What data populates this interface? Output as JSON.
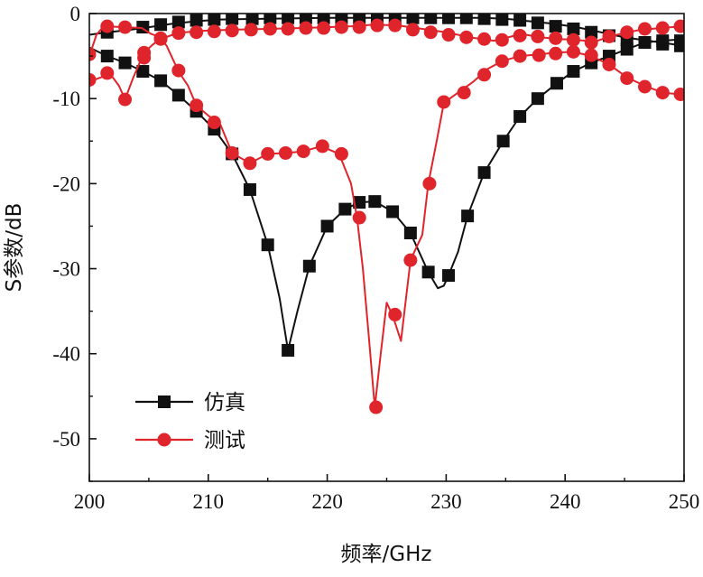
{
  "chart_data": {
    "type": "line",
    "xlabel": "频率/GHz",
    "ylabel": "S参数/dB",
    "xlim": [
      200,
      250
    ],
    "ylim": [
      -55,
      0
    ],
    "xticks": [
      "200",
      "210",
      "220",
      "230",
      "240",
      "250"
    ],
    "yticks": [
      "0",
      "-10",
      "-20",
      "-30",
      "-40",
      "-50"
    ],
    "grid": false,
    "legend_position": "bottom-left",
    "legend": [
      {
        "label": "仿真",
        "color": "#111111",
        "marker": "square"
      },
      {
        "label": "测试",
        "color": "#e0242b",
        "marker": "circle"
      }
    ],
    "series": [
      {
        "name": "仿真",
        "group": "仿真",
        "color": "#111111",
        "marker": "square",
        "curve": [
          [
            200,
            -2.5
          ],
          [
            201.5,
            -2.2
          ],
          [
            203,
            -2
          ],
          [
            205,
            -1.6
          ],
          [
            207,
            -1.2
          ],
          [
            209,
            -0.9
          ],
          [
            211,
            -0.7
          ],
          [
            215,
            -0.6
          ],
          [
            220,
            -0.5
          ],
          [
            225,
            -0.5
          ],
          [
            230,
            -0.5
          ],
          [
            233,
            -0.5
          ],
          [
            235,
            -0.6
          ],
          [
            237,
            -0.9
          ],
          [
            239,
            -1.2
          ],
          [
            241,
            -1.6
          ],
          [
            243,
            -2.2
          ],
          [
            245,
            -2.8
          ],
          [
            247,
            -3.2
          ],
          [
            249,
            -3.6
          ],
          [
            250,
            -3.8
          ]
        ],
        "markers": [
          [
            201.5,
            -2.2
          ],
          [
            204.5,
            -1.6
          ],
          [
            206,
            -1.3
          ],
          [
            207.5,
            -1
          ],
          [
            209,
            -0.8
          ],
          [
            210.5,
            -0.7
          ],
          [
            212,
            -0.6
          ],
          [
            213.7,
            -0.6
          ],
          [
            215.2,
            -0.5
          ],
          [
            216.7,
            -0.5
          ],
          [
            218.2,
            -0.5
          ],
          [
            219.7,
            -0.5
          ],
          [
            221.2,
            -0.5
          ],
          [
            222.7,
            -0.5
          ],
          [
            224.2,
            -0.5
          ],
          [
            225.7,
            -0.5
          ],
          [
            227.2,
            -0.5
          ],
          [
            228.7,
            -0.5
          ],
          [
            230.2,
            -0.5
          ],
          [
            231.7,
            -0.5
          ],
          [
            233.2,
            -0.6
          ],
          [
            234.7,
            -0.7
          ],
          [
            236.2,
            -0.8
          ],
          [
            237.7,
            -1.1
          ],
          [
            239.2,
            -1.5
          ],
          [
            240.7,
            -1.8
          ],
          [
            242.2,
            -2.2
          ],
          [
            243.7,
            -2.6
          ],
          [
            245.2,
            -3.1
          ],
          [
            246.7,
            -3.4
          ],
          [
            248.2,
            -3.6
          ],
          [
            249.7,
            -3.8
          ]
        ]
      },
      {
        "name": "仿真",
        "group": "仿真",
        "color": "#111111",
        "marker": "square",
        "curve": [
          [
            200,
            -4
          ],
          [
            201.5,
            -5
          ],
          [
            203,
            -5.8
          ],
          [
            204.5,
            -6.8
          ],
          [
            206,
            -7.9
          ],
          [
            207.5,
            -9.6
          ],
          [
            209,
            -11.5
          ],
          [
            210.5,
            -13.6
          ],
          [
            212,
            -16.5
          ],
          [
            213.5,
            -20.7
          ],
          [
            215,
            -27.2
          ],
          [
            216,
            -33.5
          ],
          [
            216.7,
            -39.6
          ],
          [
            217.5,
            -35
          ],
          [
            218.5,
            -29.7
          ],
          [
            220,
            -25
          ],
          [
            221.5,
            -23
          ],
          [
            222.7,
            -22.2
          ],
          [
            224,
            -22.1
          ],
          [
            225.5,
            -23.3
          ],
          [
            227,
            -25.8
          ],
          [
            228.5,
            -30.4
          ],
          [
            229.3,
            -32.3
          ],
          [
            229.8,
            -32
          ],
          [
            230.2,
            -30.8
          ],
          [
            231,
            -28
          ],
          [
            231.8,
            -23.8
          ],
          [
            233.2,
            -18.7
          ],
          [
            234.8,
            -15
          ],
          [
            236.2,
            -12.1
          ],
          [
            237.7,
            -10
          ],
          [
            239.3,
            -8.2
          ],
          [
            240.7,
            -6.8
          ],
          [
            242.2,
            -5.8
          ],
          [
            243.7,
            -5
          ],
          [
            245.2,
            -4.2
          ],
          [
            246.7,
            -3.4
          ],
          [
            248.2,
            -3.2
          ],
          [
            250,
            -3
          ]
        ],
        "markers": [
          [
            201.5,
            -5
          ],
          [
            203,
            -5.8
          ],
          [
            204.5,
            -6.8
          ],
          [
            206,
            -7.9
          ],
          [
            207.5,
            -9.6
          ],
          [
            209,
            -11.5
          ],
          [
            210.5,
            -13.6
          ],
          [
            212,
            -16.5
          ],
          [
            213.5,
            -20.7
          ],
          [
            215,
            -27.2
          ],
          [
            216.7,
            -39.6
          ],
          [
            218.5,
            -29.7
          ],
          [
            220,
            -25
          ],
          [
            221.5,
            -23
          ],
          [
            222.7,
            -22.2
          ],
          [
            224,
            -22.1
          ],
          [
            225.5,
            -23.3
          ],
          [
            227,
            -25.8
          ],
          [
            228.5,
            -30.4
          ],
          [
            230.2,
            -30.8
          ],
          [
            231.8,
            -23.8
          ],
          [
            233.2,
            -18.7
          ],
          [
            234.8,
            -15
          ],
          [
            236.2,
            -12.1
          ],
          [
            237.7,
            -10
          ],
          [
            239.3,
            -8.2
          ],
          [
            240.7,
            -6.8
          ],
          [
            242.2,
            -5.8
          ],
          [
            243.7,
            -5
          ],
          [
            245.2,
            -4.2
          ],
          [
            246.7,
            -3.4
          ],
          [
            248.2,
            -3.2
          ],
          [
            249.7,
            -3.2
          ]
        ]
      },
      {
        "name": "测试",
        "group": "测试",
        "color": "#e0242b",
        "marker": "circle",
        "curve": [
          [
            200,
            -5
          ],
          [
            200.6,
            -2.5
          ],
          [
            201.2,
            -1.5
          ],
          [
            203,
            -1.6
          ],
          [
            204.4,
            -1.7
          ],
          [
            205.2,
            -2.4
          ],
          [
            206.2,
            -2.9
          ],
          [
            207,
            -2.5
          ],
          [
            208,
            -2.2
          ],
          [
            210,
            -2
          ],
          [
            212,
            -1.9
          ],
          [
            215,
            -1.8
          ],
          [
            218,
            -1.7
          ],
          [
            220,
            -1.6
          ],
          [
            222,
            -1.5
          ],
          [
            224,
            -1.3
          ],
          [
            226,
            -1.4
          ],
          [
            228,
            -1.8
          ],
          [
            230,
            -2.2
          ],
          [
            232,
            -2.8
          ],
          [
            234,
            -3.2
          ],
          [
            235.2,
            -2.8
          ],
          [
            236.3,
            -2.4
          ],
          [
            238,
            -2.8
          ],
          [
            239.5,
            -3
          ],
          [
            241,
            -3.1
          ],
          [
            242.5,
            -3.3
          ],
          [
            244,
            -2.6
          ],
          [
            246,
            -2
          ],
          [
            248,
            -1.7
          ],
          [
            250,
            -1.5
          ]
        ],
        "markers": [
          [
            200,
            -4.8
          ],
          [
            201.5,
            -1.5
          ],
          [
            203,
            -1.6
          ],
          [
            204.6,
            -5.2
          ],
          [
            206,
            -3
          ],
          [
            207.5,
            -2.3
          ],
          [
            209,
            -2.2
          ],
          [
            210.5,
            -2.1
          ],
          [
            212,
            -2
          ],
          [
            213.6,
            -1.9
          ],
          [
            215.2,
            -1.8
          ],
          [
            216.7,
            -1.8
          ],
          [
            218.2,
            -1.7
          ],
          [
            219.7,
            -1.7
          ],
          [
            221.2,
            -1.6
          ],
          [
            222.7,
            -1.6
          ],
          [
            224.2,
            -1.4
          ],
          [
            225.7,
            -1.4
          ],
          [
            227.2,
            -1.9
          ],
          [
            228.7,
            -2.2
          ],
          [
            230.2,
            -2.5
          ],
          [
            231.7,
            -2.8
          ],
          [
            233.2,
            -3
          ],
          [
            234.7,
            -3.1
          ],
          [
            236.2,
            -2.6
          ],
          [
            237.7,
            -2.7
          ],
          [
            239.2,
            -2.9
          ],
          [
            240.7,
            -3.1
          ],
          [
            242.2,
            -3.4
          ],
          [
            243.7,
            -2.7
          ],
          [
            245.2,
            -2.2
          ],
          [
            246.7,
            -1.8
          ],
          [
            248.2,
            -1.7
          ],
          [
            249.7,
            -1.5
          ]
        ]
      },
      {
        "name": "测试",
        "group": "测试",
        "color": "#e0242b",
        "marker": "circle",
        "curve": [
          [
            200,
            -8
          ],
          [
            201,
            -7.5
          ],
          [
            201.7,
            -7
          ],
          [
            202.5,
            -8.5
          ],
          [
            203,
            -10.1
          ],
          [
            203.7,
            -7.5
          ],
          [
            204.6,
            -4.6
          ],
          [
            205.3,
            -3.7
          ],
          [
            206,
            -2.9
          ],
          [
            206.5,
            -3.8
          ],
          [
            207.5,
            -6.8
          ],
          [
            208.3,
            -8.5
          ],
          [
            209,
            -10.8
          ],
          [
            210,
            -12
          ],
          [
            211,
            -13
          ],
          [
            212,
            -16.4
          ],
          [
            213.5,
            -17.6
          ],
          [
            215,
            -16.5
          ],
          [
            216.5,
            -16.4
          ],
          [
            218,
            -16.2
          ],
          [
            219.5,
            -15.6
          ],
          [
            221,
            -16.5
          ],
          [
            222,
            -20
          ],
          [
            222.5,
            -24
          ],
          [
            223,
            -30
          ],
          [
            223.5,
            -38
          ],
          [
            224,
            -46.3
          ],
          [
            224.5,
            -40
          ],
          [
            225,
            -34
          ],
          [
            225.5,
            -35.5
          ],
          [
            226.2,
            -38.5
          ],
          [
            227,
            -29
          ],
          [
            228,
            -26
          ],
          [
            228.5,
            -20
          ],
          [
            229.2,
            -15
          ],
          [
            229.8,
            -10.5
          ],
          [
            231,
            -9.3
          ],
          [
            232.3,
            -8
          ],
          [
            233.5,
            -6.5
          ],
          [
            234.7,
            -5.6
          ],
          [
            236.2,
            -5
          ],
          [
            237.8,
            -4.8
          ],
          [
            239.2,
            -4.6
          ],
          [
            240.7,
            -4.5
          ],
          [
            242.2,
            -5
          ],
          [
            243.7,
            -6
          ],
          [
            245.2,
            -7.5
          ],
          [
            246.7,
            -8.5
          ],
          [
            248.2,
            -9.3
          ],
          [
            249.7,
            -9.5
          ],
          [
            250,
            -9.5
          ]
        ],
        "markers": [
          [
            200,
            -7.8
          ],
          [
            201.5,
            -7
          ],
          [
            203,
            -10.1
          ],
          [
            204.6,
            -4.6
          ],
          [
            206,
            -2.9
          ],
          [
            207.5,
            -6.7
          ],
          [
            209,
            -10.8
          ],
          [
            210.5,
            -12.8
          ],
          [
            212,
            -16.4
          ],
          [
            213.5,
            -17.6
          ],
          [
            215,
            -16.5
          ],
          [
            216.5,
            -16.4
          ],
          [
            218,
            -16.2
          ],
          [
            219.6,
            -15.6
          ],
          [
            221.2,
            -16.5
          ],
          [
            222.7,
            -24
          ],
          [
            224.1,
            -46.3
          ],
          [
            225.7,
            -35.4
          ],
          [
            227,
            -29
          ],
          [
            228.6,
            -20
          ],
          [
            229.8,
            -10.4
          ],
          [
            231.5,
            -9.3
          ],
          [
            233.2,
            -7.2
          ],
          [
            234.7,
            -5.6
          ],
          [
            236.2,
            -5
          ],
          [
            237.8,
            -4.9
          ],
          [
            239.2,
            -4.7
          ],
          [
            240.7,
            -4.5
          ],
          [
            242.2,
            -4.9
          ],
          [
            243.7,
            -6
          ],
          [
            245.2,
            -7.6
          ],
          [
            246.7,
            -8.6
          ],
          [
            248.2,
            -9.3
          ],
          [
            249.7,
            -9.5
          ]
        ]
      }
    ]
  }
}
